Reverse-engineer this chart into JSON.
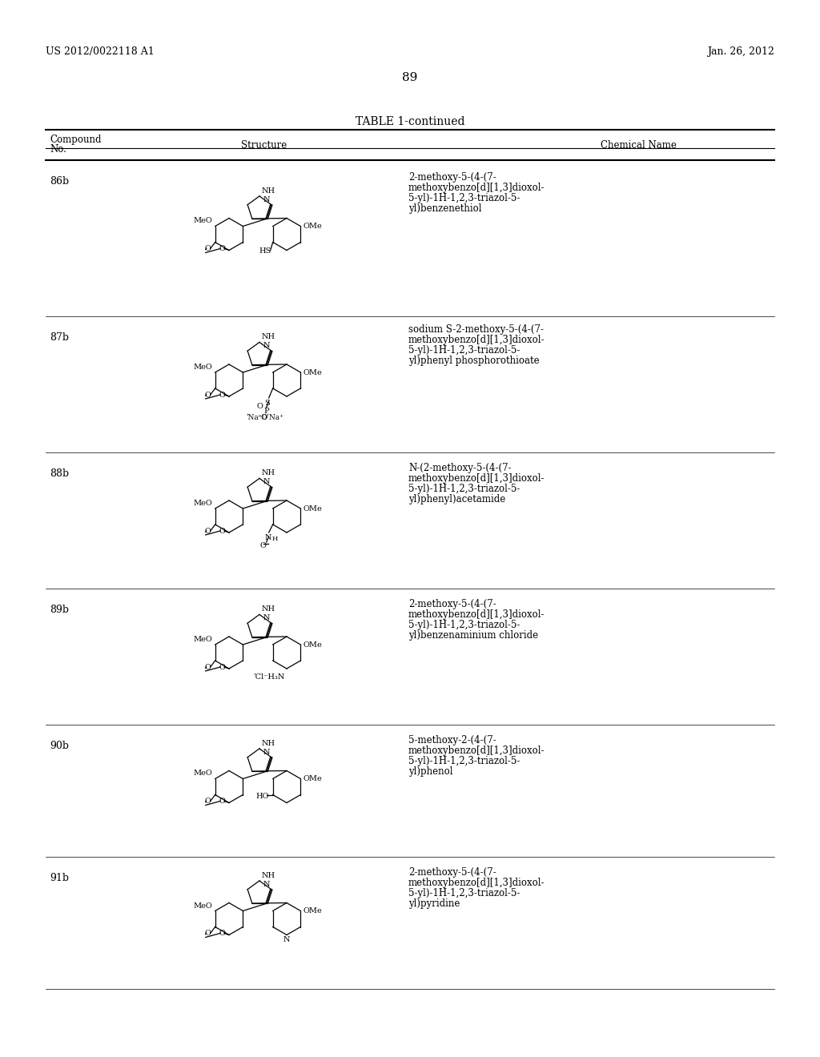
{
  "header_left": "US 2012/0022118 A1",
  "header_right": "Jan. 26, 2012",
  "page_number": "89",
  "table_title": "TABLE 1-continued",
  "col1_header": "Compound\nNo.",
  "col2_header": "Structure",
  "col3_header": "Chemical Name",
  "background_color": "#ffffff",
  "text_color": "#000000",
  "compounds": [
    {
      "id": "86b",
      "name": "2-methoxy-5-(4-(7-\nmethoxybenzo[d][1,3]dioxol-\n5-yl)-1H-1,2,3-triazol-5-\nyl)benzenethiol"
    },
    {
      "id": "87b",
      "name": "sodium S-2-methoxy-5-(4-(7-\nmethoxybenzo[d][1,3]dioxol-\n5-yl)-1H-1,2,3-triazol-5-\nyl)phenyl phosphorothioate"
    },
    {
      "id": "88b",
      "name": "N-(2-methoxy-5-(4-(7-\nmethoxybenzo[d][1,3]dioxol-\n5-yl)-1H-1,2,3-triazol-5-\nyl)phenyl)acetamide"
    },
    {
      "id": "89b",
      "name": "2-methoxy-5-(4-(7-\nmethoxybenzo[d][1,3]dioxol-\n5-yl)-1H-1,2,3-triazol-5-\nyl)benzenaminium chloride"
    },
    {
      "id": "90b",
      "name": "5-methoxy-2-(4-(7-\nmethoxybenzo[d][1,3]dioxol-\n5-yl)-1H-1,2,3-triazol-5-\nyl)phenol"
    },
    {
      "id": "91b",
      "name": "2-methoxy-5-(4-(7-\nmethoxybenzo[d][1,3]dioxol-\n5-yl)-1H-1,2,3-triazol-5-\nyl)pyridine"
    }
  ]
}
